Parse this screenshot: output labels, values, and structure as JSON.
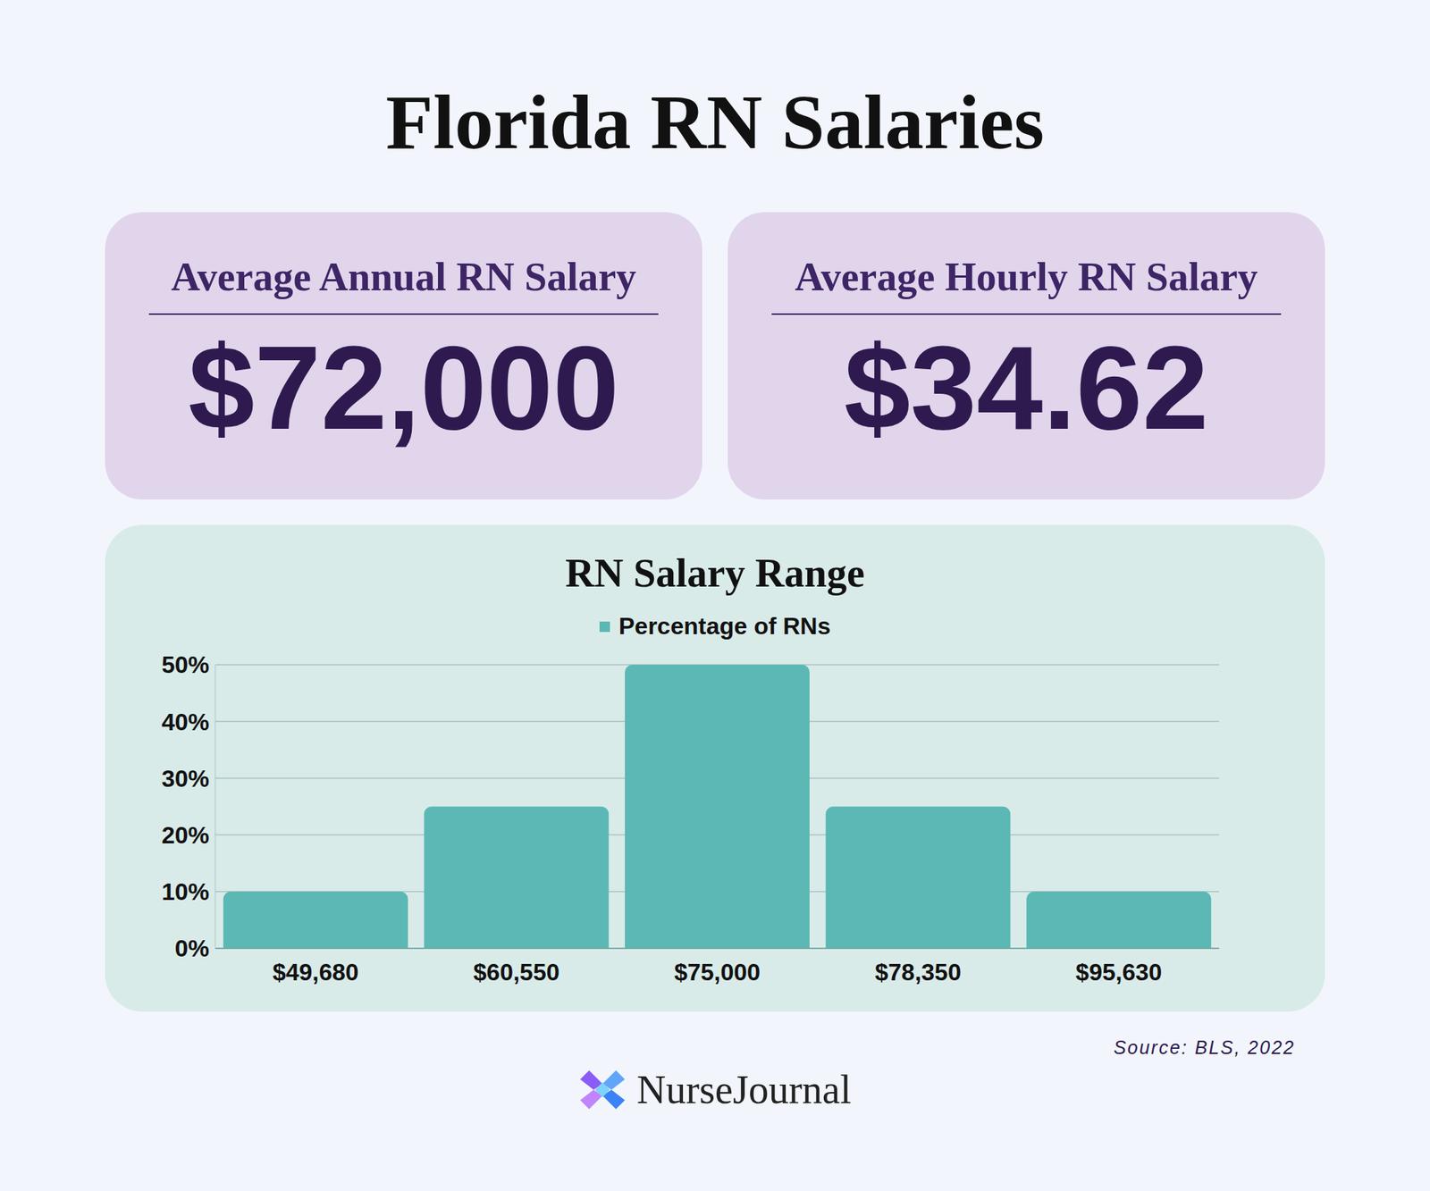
{
  "header": {
    "title": "Florida RN Salaries"
  },
  "cards": [
    {
      "heading": "Average Annual RN Salary",
      "value": "$72,000"
    },
    {
      "heading": "Average Hourly RN Salary",
      "value": "$34.62"
    }
  ],
  "chart_data": {
    "type": "bar",
    "title": "RN Salary Range",
    "categories": [
      "$49,680",
      "$60,550",
      "$75,000",
      "$78,350",
      "$95,630"
    ],
    "series": [
      {
        "name": "Percentage of RNs",
        "color": "#5bb8b4",
        "values": [
          10,
          25,
          50,
          25,
          10
        ]
      }
    ],
    "ylim": [
      0,
      50
    ],
    "yticks": [
      {
        "value": 0,
        "label": "0%"
      },
      {
        "value": 10,
        "label": "10%"
      },
      {
        "value": 20,
        "label": "20%"
      },
      {
        "value": 30,
        "label": "30%"
      },
      {
        "value": 40,
        "label": "40%"
      },
      {
        "value": 50,
        "label": "50%"
      }
    ],
    "grid": true,
    "legend": "top"
  },
  "footer": {
    "source": "Source: BLS, 2022",
    "brand": "NurseJournal"
  }
}
